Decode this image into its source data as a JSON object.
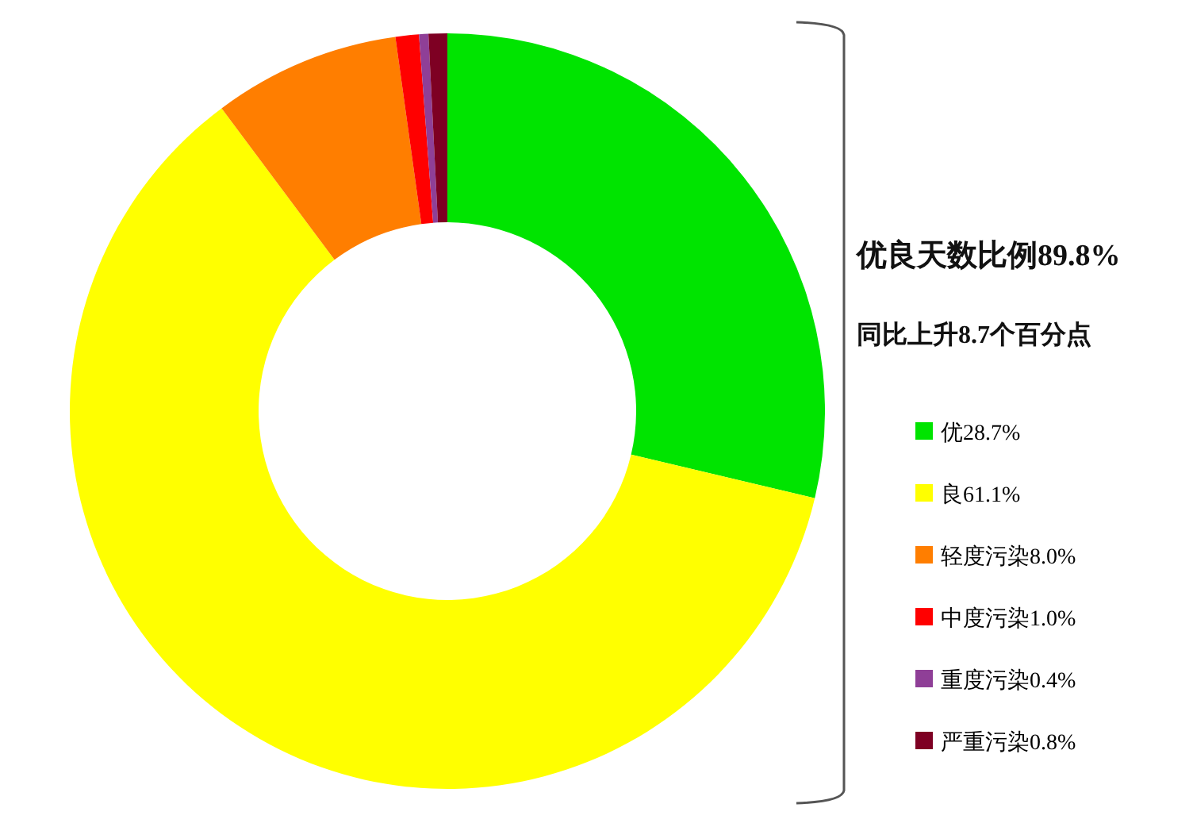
{
  "chart_data": {
    "type": "donut",
    "categories": [
      "优",
      "良",
      "轻度污染",
      "中度污染",
      "重度污染",
      "严重污染"
    ],
    "values": [
      28.7,
      61.1,
      8.0,
      1.0,
      0.4,
      0.8
    ],
    "value_labels": [
      "28.7%",
      "61.1%",
      "8.0%",
      "1.0%",
      "0.4%",
      "0.8%"
    ],
    "colors": [
      "#00e400",
      "#ffff00",
      "#ff7e00",
      "#ff0000",
      "#8f3f97",
      "#7e0023"
    ],
    "annotations": [
      "优良天数比例89.8%",
      "同比上升8.7个百分点"
    ],
    "legend": "right"
  }
}
